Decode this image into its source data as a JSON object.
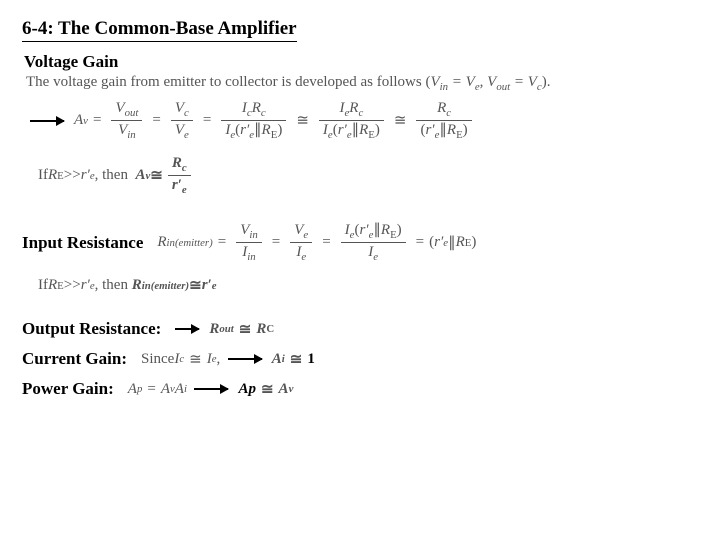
{
  "title": "6-4: The Common-Base Amplifier",
  "sub1": "Voltage Gain",
  "intro_a": "The voltage gain from emitter to collector is developed as follows (",
  "intro_b": "V",
  "intro_c": "in",
  "intro_d": " = V",
  "intro_e": "e",
  "intro_f": ", V",
  "intro_g": "out",
  "intro_h": " = V",
  "intro_i": "c",
  "intro_j": ").",
  "Av": "A",
  "v": "v",
  "Vout": "V",
  "out": "out",
  "Vin": "V",
  "in": "in",
  "Vc": "V",
  "csub": "c",
  "Ve": "V",
  "esub": "e",
  "Ic": "I",
  "cs": "c",
  "Ie": "I",
  "es": "e",
  "Rc": "R",
  "Csub": "c",
  "RC": "R",
  "Cbig": "C",
  "rprime": "r′",
  "re": "e",
  "RE": "R",
  "Esub": "E",
  "par": "∥",
  "approx": "≅",
  "If": "If ",
  "gg": " >> ",
  "then": ", then ",
  "sub2": "Input Resistance",
  "Rin": "R",
  "inem": "in(emitter)",
  "Iin": "I",
  "sub3": "Output Resistance:",
  "Rout": "R",
  "outsub": "out",
  "sub4": "Current Gain:",
  "Since": "Since ",
  "Ai": "A",
  "isub": "i",
  "one": "1",
  "sub5": "Power Gain:",
  "Ap": "A",
  "psub": "p",
  "Apb": "Ap"
}
